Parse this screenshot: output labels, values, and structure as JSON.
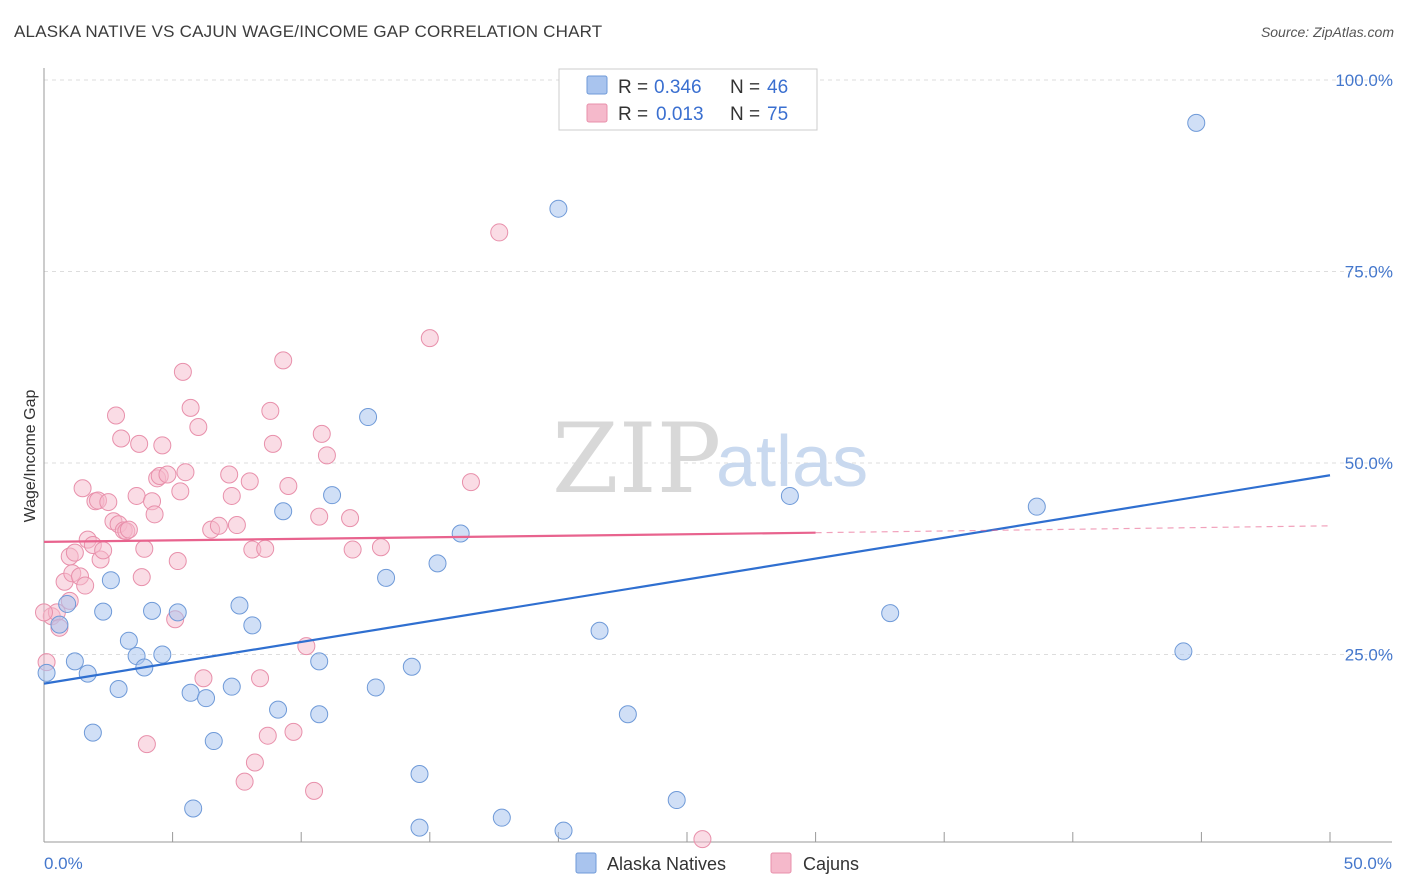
{
  "header": {
    "title": "ALASKA NATIVE VS CAJUN WAGE/INCOME GAP CORRELATION CHART",
    "source": "Source: ZipAtlas.com"
  },
  "watermark": {
    "zip": "ZIP",
    "atlas": "atlas"
  },
  "colors": {
    "blue_fill": "#a9c4ee",
    "blue_stroke": "#6f9ad8",
    "blue_line": "#2f6fd0",
    "pink_fill": "#f5b9cb",
    "pink_stroke": "#e890ab",
    "pink_line": "#e8638e",
    "grid": "#dddddd",
    "axis_text": "#4477cc"
  },
  "legend": {
    "rows": [
      {
        "r_label": "R =",
        "r_value": "0.346",
        "n_label": "N =",
        "n_value": "46"
      },
      {
        "r_label": "R =",
        "r_value": "0.013",
        "n_label": "N =",
        "n_value": "75"
      }
    ]
  },
  "bottom_legend": [
    "Alaska Natives",
    "Cajuns"
  ],
  "chart_data": {
    "type": "scatter",
    "title": "ALASKA NATIVE VS CAJUN WAGE/INCOME GAP CORRELATION CHART",
    "xlabel": "",
    "ylabel": "Wage/Income Gap",
    "xlim": [
      0,
      0.5
    ],
    "ylim": [
      0,
      1.0
    ],
    "x_tick_labels": [
      "0.0%",
      "50.0%"
    ],
    "y_ticks": [
      0.25,
      0.5,
      0.75,
      1.0
    ],
    "y_tick_labels": [
      "25.0%",
      "50.0%",
      "75.0%",
      "100.0%"
    ],
    "grid": true,
    "legend_position": "top-center",
    "series": [
      {
        "name": "Alaska Natives",
        "color": "#a9c4ee",
        "r": 0.346,
        "n": 46,
        "trend": {
          "x": [
            0,
            0.5
          ],
          "y": [
            0.212,
            0.484
          ]
        },
        "points": [
          [
            0.001,
            0.226
          ],
          [
            0.006,
            0.289
          ],
          [
            0.009,
            0.316
          ],
          [
            0.012,
            0.241
          ],
          [
            0.017,
            0.225
          ],
          [
            0.019,
            0.148
          ],
          [
            0.023,
            0.306
          ],
          [
            0.026,
            0.347
          ],
          [
            0.029,
            0.205
          ],
          [
            0.033,
            0.268
          ],
          [
            0.036,
            0.248
          ],
          [
            0.039,
            0.233
          ],
          [
            0.042,
            0.307
          ],
          [
            0.046,
            0.25
          ],
          [
            0.052,
            0.305
          ],
          [
            0.057,
            0.2
          ],
          [
            0.058,
            0.049
          ],
          [
            0.063,
            0.193
          ],
          [
            0.066,
            0.137
          ],
          [
            0.073,
            0.208
          ],
          [
            0.076,
            0.314
          ],
          [
            0.081,
            0.288
          ],
          [
            0.091,
            0.178
          ],
          [
            0.093,
            0.437
          ],
          [
            0.107,
            0.241
          ],
          [
            0.107,
            0.172
          ],
          [
            0.112,
            0.458
          ],
          [
            0.126,
            0.56
          ],
          [
            0.129,
            0.207
          ],
          [
            0.133,
            0.35
          ],
          [
            0.143,
            0.234
          ],
          [
            0.146,
            0.094
          ],
          [
            0.146,
            0.024
          ],
          [
            0.153,
            0.369
          ],
          [
            0.162,
            0.408
          ],
          [
            0.178,
            0.037
          ],
          [
            0.2,
            0.832
          ],
          [
            0.202,
            0.02
          ],
          [
            0.216,
            0.281
          ],
          [
            0.227,
            0.172
          ],
          [
            0.246,
            0.06
          ],
          [
            0.29,
            0.457
          ],
          [
            0.329,
            0.304
          ],
          [
            0.386,
            0.443
          ],
          [
            0.443,
            0.254
          ],
          [
            0.448,
            0.944
          ]
        ]
      },
      {
        "name": "Cajuns",
        "color": "#f5b9cb",
        "r": 0.013,
        "n": 75,
        "trend": {
          "x": [
            0,
            0.3
          ],
          "y": [
            0.397,
            0.409
          ]
        },
        "trend_extension": {
          "x": [
            0.3,
            0.5
          ],
          "y": [
            0.409,
            0.418
          ]
        },
        "points": [
          [
            0.001,
            0.24
          ],
          [
            0.003,
            0.3
          ],
          [
            0.005,
            0.305
          ],
          [
            0.006,
            0.285
          ],
          [
            0.008,
            0.345
          ],
          [
            0.01,
            0.32
          ],
          [
            0.01,
            0.378
          ],
          [
            0.011,
            0.356
          ],
          [
            0.012,
            0.383
          ],
          [
            0.014,
            0.352
          ],
          [
            0.015,
            0.467
          ],
          [
            0.016,
            0.34
          ],
          [
            0.017,
            0.4
          ],
          [
            0.019,
            0.393
          ],
          [
            0.02,
            0.45
          ],
          [
            0.021,
            0.451
          ],
          [
            0.022,
            0.374
          ],
          [
            0.023,
            0.386
          ],
          [
            0.025,
            0.449
          ],
          [
            0.027,
            0.424
          ],
          [
            0.028,
            0.562
          ],
          [
            0.029,
            0.42
          ],
          [
            0.03,
            0.532
          ],
          [
            0.031,
            0.412
          ],
          [
            0.032,
            0.411
          ],
          [
            0.033,
            0.413
          ],
          [
            0.036,
            0.457
          ],
          [
            0.037,
            0.525
          ],
          [
            0.038,
            0.351
          ],
          [
            0.039,
            0.388
          ],
          [
            0.04,
            0.133
          ],
          [
            0.042,
            0.45
          ],
          [
            0.043,
            0.433
          ],
          [
            0.044,
            0.48
          ],
          [
            0.045,
            0.483
          ],
          [
            0.046,
            0.523
          ],
          [
            0.048,
            0.485
          ],
          [
            0.051,
            0.296
          ],
          [
            0.052,
            0.372
          ],
          [
            0.053,
            0.463
          ],
          [
            0.054,
            0.619
          ],
          [
            0.055,
            0.488
          ],
          [
            0.057,
            0.572
          ],
          [
            0.06,
            0.547
          ],
          [
            0.062,
            0.219
          ],
          [
            0.065,
            0.413
          ],
          [
            0.068,
            0.418
          ],
          [
            0.072,
            0.485
          ],
          [
            0.073,
            0.457
          ],
          [
            0.075,
            0.419
          ],
          [
            0.078,
            0.084
          ],
          [
            0.08,
            0.476
          ],
          [
            0.081,
            0.387
          ],
          [
            0.082,
            0.109
          ],
          [
            0.084,
            0.219
          ],
          [
            0.086,
            0.388
          ],
          [
            0.087,
            0.144
          ],
          [
            0.088,
            0.568
          ],
          [
            0.089,
            0.525
          ],
          [
            0.093,
            0.634
          ],
          [
            0.095,
            0.47
          ],
          [
            0.097,
            0.149
          ],
          [
            0.102,
            0.261
          ],
          [
            0.105,
            0.072
          ],
          [
            0.107,
            0.43
          ],
          [
            0.108,
            0.538
          ],
          [
            0.11,
            0.51
          ],
          [
            0.119,
            0.428
          ],
          [
            0.12,
            0.387
          ],
          [
            0.131,
            0.39
          ],
          [
            0.15,
            0.663
          ],
          [
            0.166,
            0.475
          ],
          [
            0.177,
            0.801
          ],
          [
            0.256,
            0.009
          ],
          [
            0.0,
            0.305
          ]
        ]
      }
    ]
  }
}
